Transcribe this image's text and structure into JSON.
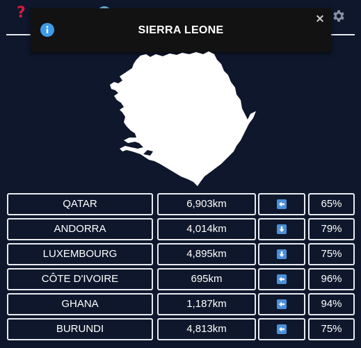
{
  "header": {
    "help_icon_glyph": "?",
    "settings_icon": "gear-icon"
  },
  "toast": {
    "title": "SIERRA LEONE",
    "close_glyph": "×",
    "info_icon": "info-icon"
  },
  "colors": {
    "background": "#0e172b",
    "help_icon": "#d81b3c",
    "arrow_box": "#4a90d9",
    "border": "#e8ebf0"
  },
  "guesses": [
    {
      "country": "QATAR",
      "distance": "6,903km",
      "direction": "left",
      "percent": "65%"
    },
    {
      "country": "ANDORRA",
      "distance": "4,014km",
      "direction": "down",
      "percent": "79%"
    },
    {
      "country": "LUXEMBOURG",
      "distance": "4,895km",
      "direction": "down",
      "percent": "75%"
    },
    {
      "country": "CÔTE D'IVOIRE",
      "distance": "695km",
      "direction": "left",
      "percent": "96%"
    },
    {
      "country": "GHANA",
      "distance": "1,187km",
      "direction": "left",
      "percent": "94%"
    },
    {
      "country": "BURUNDI",
      "distance": "4,813km",
      "direction": "left",
      "percent": "75%"
    }
  ]
}
